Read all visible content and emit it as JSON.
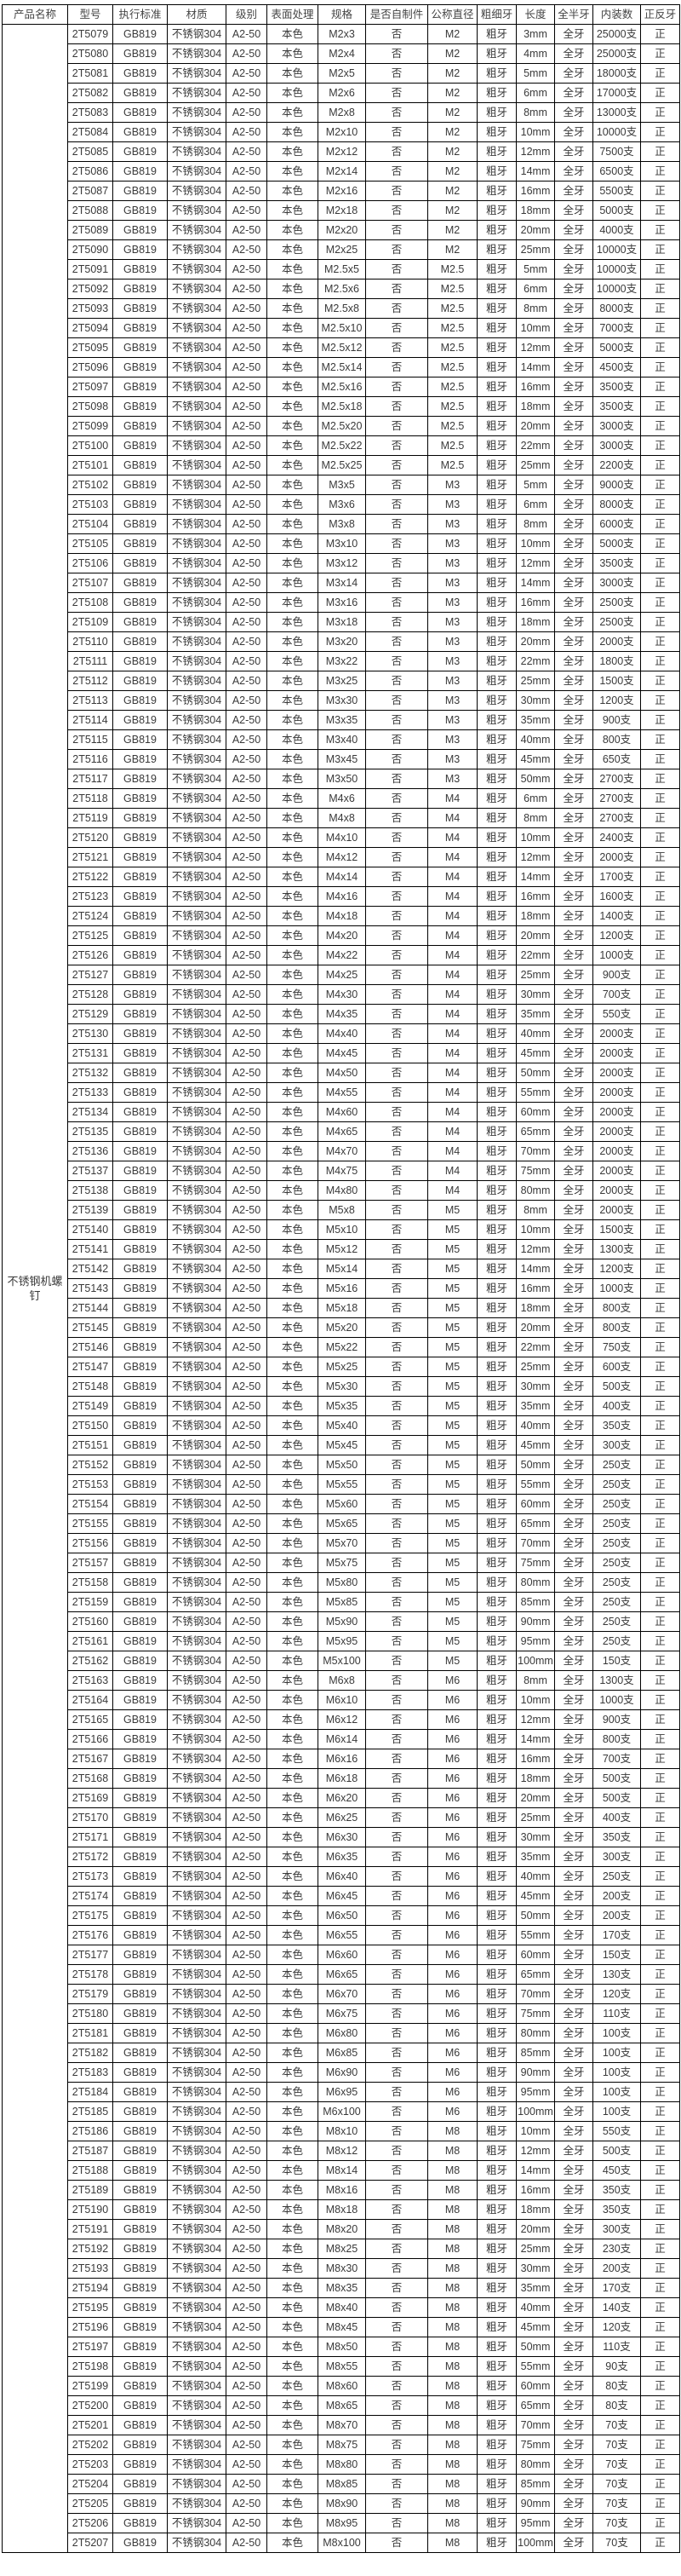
{
  "headers": [
    "产品名称",
    "型号",
    "执行标准",
    "材质",
    "级别",
    "表面处理",
    "规格",
    "是否自制件",
    "公称直径",
    "粗细牙",
    "长度",
    "全半牙",
    "内装数",
    "正反牙"
  ],
  "product_name": "不锈钢机螺钉",
  "common": {
    "standard": "GB819",
    "material": "不锈钢304",
    "grade": "A2-50",
    "surface": "本色",
    "self_made": "否",
    "thread": "粗牙",
    "full_half": "全牙",
    "direction": "正"
  },
  "rows": [
    [
      "2T5079",
      "M2x3",
      "M2",
      "3mm",
      "25000支"
    ],
    [
      "2T5080",
      "M2x4",
      "M2",
      "4mm",
      "25000支"
    ],
    [
      "2T5081",
      "M2x5",
      "M2",
      "5mm",
      "18000支"
    ],
    [
      "2T5082",
      "M2x6",
      "M2",
      "6mm",
      "17000支"
    ],
    [
      "2T5083",
      "M2x8",
      "M2",
      "8mm",
      "13000支"
    ],
    [
      "2T5084",
      "M2x10",
      "M2",
      "10mm",
      "10000支"
    ],
    [
      "2T5085",
      "M2x12",
      "M2",
      "12mm",
      "7500支"
    ],
    [
      "2T5086",
      "M2x14",
      "M2",
      "14mm",
      "6500支"
    ],
    [
      "2T5087",
      "M2x16",
      "M2",
      "16mm",
      "5500支"
    ],
    [
      "2T5088",
      "M2x18",
      "M2",
      "18mm",
      "5000支"
    ],
    [
      "2T5089",
      "M2x20",
      "M2",
      "20mm",
      "4000支"
    ],
    [
      "2T5090",
      "M2x25",
      "M2",
      "25mm",
      "10000支"
    ],
    [
      "2T5091",
      "M2.5x5",
      "M2.5",
      "5mm",
      "10000支"
    ],
    [
      "2T5092",
      "M2.5x6",
      "M2.5",
      "6mm",
      "10000支"
    ],
    [
      "2T5093",
      "M2.5x8",
      "M2.5",
      "8mm",
      "8000支"
    ],
    [
      "2T5094",
      "M2.5x10",
      "M2.5",
      "10mm",
      "7000支"
    ],
    [
      "2T5095",
      "M2.5x12",
      "M2.5",
      "12mm",
      "5000支"
    ],
    [
      "2T5096",
      "M2.5x14",
      "M2.5",
      "14mm",
      "4500支"
    ],
    [
      "2T5097",
      "M2.5x16",
      "M2.5",
      "16mm",
      "3500支"
    ],
    [
      "2T5098",
      "M2.5x18",
      "M2.5",
      "18mm",
      "3500支"
    ],
    [
      "2T5099",
      "M2.5x20",
      "M2.5",
      "20mm",
      "3000支"
    ],
    [
      "2T5100",
      "M2.5x22",
      "M2.5",
      "22mm",
      "3000支"
    ],
    [
      "2T5101",
      "M2.5x25",
      "M2.5",
      "25mm",
      "2200支"
    ],
    [
      "2T5102",
      "M3x5",
      "M3",
      "5mm",
      "9000支"
    ],
    [
      "2T5103",
      "M3x6",
      "M3",
      "6mm",
      "8000支"
    ],
    [
      "2T5104",
      "M3x8",
      "M3",
      "8mm",
      "6000支"
    ],
    [
      "2T5105",
      "M3x10",
      "M3",
      "10mm",
      "5000支"
    ],
    [
      "2T5106",
      "M3x12",
      "M3",
      "12mm",
      "3500支"
    ],
    [
      "2T5107",
      "M3x14",
      "M3",
      "14mm",
      "3000支"
    ],
    [
      "2T5108",
      "M3x16",
      "M3",
      "16mm",
      "2500支"
    ],
    [
      "2T5109",
      "M3x18",
      "M3",
      "18mm",
      "2500支"
    ],
    [
      "2T5110",
      "M3x20",
      "M3",
      "20mm",
      "2000支"
    ],
    [
      "2T5111",
      "M3x22",
      "M3",
      "22mm",
      "1800支"
    ],
    [
      "2T5112",
      "M3x25",
      "M3",
      "25mm",
      "1500支"
    ],
    [
      "2T5113",
      "M3x30",
      "M3",
      "30mm",
      "1200支"
    ],
    [
      "2T5114",
      "M3x35",
      "M3",
      "35mm",
      "900支"
    ],
    [
      "2T5115",
      "M3x40",
      "M3",
      "40mm",
      "800支"
    ],
    [
      "2T5116",
      "M3x45",
      "M3",
      "45mm",
      "650支"
    ],
    [
      "2T5117",
      "M3x50",
      "M3",
      "50mm",
      "2700支"
    ],
    [
      "2T5118",
      "M4x6",
      "M4",
      "6mm",
      "2700支"
    ],
    [
      "2T5119",
      "M4x8",
      "M4",
      "8mm",
      "2700支"
    ],
    [
      "2T5120",
      "M4x10",
      "M4",
      "10mm",
      "2400支"
    ],
    [
      "2T5121",
      "M4x12",
      "M4",
      "12mm",
      "2000支"
    ],
    [
      "2T5122",
      "M4x14",
      "M4",
      "14mm",
      "1700支"
    ],
    [
      "2T5123",
      "M4x16",
      "M4",
      "16mm",
      "1600支"
    ],
    [
      "2T5124",
      "M4x18",
      "M4",
      "18mm",
      "1400支"
    ],
    [
      "2T5125",
      "M4x20",
      "M4",
      "20mm",
      "1200支"
    ],
    [
      "2T5126",
      "M4x22",
      "M4",
      "22mm",
      "1000支"
    ],
    [
      "2T5127",
      "M4x25",
      "M4",
      "25mm",
      "900支"
    ],
    [
      "2T5128",
      "M4x30",
      "M4",
      "30mm",
      "700支"
    ],
    [
      "2T5129",
      "M4x35",
      "M4",
      "35mm",
      "550支"
    ],
    [
      "2T5130",
      "M4x40",
      "M4",
      "40mm",
      "2000支"
    ],
    [
      "2T5131",
      "M4x45",
      "M4",
      "45mm",
      "2000支"
    ],
    [
      "2T5132",
      "M4x50",
      "M4",
      "50mm",
      "2000支"
    ],
    [
      "2T5133",
      "M4x55",
      "M4",
      "55mm",
      "2000支"
    ],
    [
      "2T5134",
      "M4x60",
      "M4",
      "60mm",
      "2000支"
    ],
    [
      "2T5135",
      "M4x65",
      "M4",
      "65mm",
      "2000支"
    ],
    [
      "2T5136",
      "M4x70",
      "M4",
      "70mm",
      "2000支"
    ],
    [
      "2T5137",
      "M4x75",
      "M4",
      "75mm",
      "2000支"
    ],
    [
      "2T5138",
      "M4x80",
      "M4",
      "80mm",
      "2000支"
    ],
    [
      "2T5139",
      "M5x8",
      "M5",
      "8mm",
      "2000支"
    ],
    [
      "2T5140",
      "M5x10",
      "M5",
      "10mm",
      "1500支"
    ],
    [
      "2T5141",
      "M5x12",
      "M5",
      "12mm",
      "1300支"
    ],
    [
      "2T5142",
      "M5x14",
      "M5",
      "14mm",
      "1200支"
    ],
    [
      "2T5143",
      "M5x16",
      "M5",
      "16mm",
      "1000支"
    ],
    [
      "2T5144",
      "M5x18",
      "M5",
      "18mm",
      "800支"
    ],
    [
      "2T5145",
      "M5x20",
      "M5",
      "20mm",
      "800支"
    ],
    [
      "2T5146",
      "M5x22",
      "M5",
      "22mm",
      "750支"
    ],
    [
      "2T5147",
      "M5x25",
      "M5",
      "25mm",
      "600支"
    ],
    [
      "2T5148",
      "M5x30",
      "M5",
      "30mm",
      "500支"
    ],
    [
      "2T5149",
      "M5x35",
      "M5",
      "35mm",
      "400支"
    ],
    [
      "2T5150",
      "M5x40",
      "M5",
      "40mm",
      "350支"
    ],
    [
      "2T5151",
      "M5x45",
      "M5",
      "45mm",
      "300支"
    ],
    [
      "2T5152",
      "M5x50",
      "M5",
      "50mm",
      "250支"
    ],
    [
      "2T5153",
      "M5x55",
      "M5",
      "55mm",
      "250支"
    ],
    [
      "2T5154",
      "M5x60",
      "M5",
      "60mm",
      "250支"
    ],
    [
      "2T5155",
      "M5x65",
      "M5",
      "65mm",
      "250支"
    ],
    [
      "2T5156",
      "M5x70",
      "M5",
      "70mm",
      "250支"
    ],
    [
      "2T5157",
      "M5x75",
      "M5",
      "75mm",
      "250支"
    ],
    [
      "2T5158",
      "M5x80",
      "M5",
      "80mm",
      "250支"
    ],
    [
      "2T5159",
      "M5x85",
      "M5",
      "85mm",
      "250支"
    ],
    [
      "2T5160",
      "M5x90",
      "M5",
      "90mm",
      "250支"
    ],
    [
      "2T5161",
      "M5x95",
      "M5",
      "95mm",
      "250支"
    ],
    [
      "2T5162",
      "M5x100",
      "M5",
      "100mm",
      "150支"
    ],
    [
      "2T5163",
      "M6x8",
      "M6",
      "8mm",
      "1300支"
    ],
    [
      "2T5164",
      "M6x10",
      "M6",
      "10mm",
      "1000支"
    ],
    [
      "2T5165",
      "M6x12",
      "M6",
      "12mm",
      "900支"
    ],
    [
      "2T5166",
      "M6x14",
      "M6",
      "14mm",
      "800支"
    ],
    [
      "2T5167",
      "M6x16",
      "M6",
      "16mm",
      "700支"
    ],
    [
      "2T5168",
      "M6x18",
      "M6",
      "18mm",
      "500支"
    ],
    [
      "2T5169",
      "M6x20",
      "M6",
      "20mm",
      "500支"
    ],
    [
      "2T5170",
      "M6x25",
      "M6",
      "25mm",
      "400支"
    ],
    [
      "2T5171",
      "M6x30",
      "M6",
      "30mm",
      "350支"
    ],
    [
      "2T5172",
      "M6x35",
      "M6",
      "35mm",
      "300支"
    ],
    [
      "2T5173",
      "M6x40",
      "M6",
      "40mm",
      "250支"
    ],
    [
      "2T5174",
      "M6x45",
      "M6",
      "45mm",
      "200支"
    ],
    [
      "2T5175",
      "M6x50",
      "M6",
      "50mm",
      "200支"
    ],
    [
      "2T5176",
      "M6x55",
      "M6",
      "55mm",
      "170支"
    ],
    [
      "2T5177",
      "M6x60",
      "M6",
      "60mm",
      "150支"
    ],
    [
      "2T5178",
      "M6x65",
      "M6",
      "65mm",
      "130支"
    ],
    [
      "2T5179",
      "M6x70",
      "M6",
      "70mm",
      "120支"
    ],
    [
      "2T5180",
      "M6x75",
      "M6",
      "75mm",
      "110支"
    ],
    [
      "2T5181",
      "M6x80",
      "M6",
      "80mm",
      "100支"
    ],
    [
      "2T5182",
      "M6x85",
      "M6",
      "85mm",
      "100支"
    ],
    [
      "2T5183",
      "M6x90",
      "M6",
      "90mm",
      "100支"
    ],
    [
      "2T5184",
      "M6x95",
      "M6",
      "95mm",
      "100支"
    ],
    [
      "2T5185",
      "M6x100",
      "M6",
      "100mm",
      "100支"
    ],
    [
      "2T5186",
      "M8x10",
      "M8",
      "10mm",
      "550支"
    ],
    [
      "2T5187",
      "M8x12",
      "M8",
      "12mm",
      "500支"
    ],
    [
      "2T5188",
      "M8x14",
      "M8",
      "14mm",
      "450支"
    ],
    [
      "2T5189",
      "M8x16",
      "M8",
      "16mm",
      "350支"
    ],
    [
      "2T5190",
      "M8x18",
      "M8",
      "18mm",
      "350支"
    ],
    [
      "2T5191",
      "M8x20",
      "M8",
      "20mm",
      "300支"
    ],
    [
      "2T5192",
      "M8x25",
      "M8",
      "25mm",
      "230支"
    ],
    [
      "2T5193",
      "M8x30",
      "M8",
      "30mm",
      "200支"
    ],
    [
      "2T5194",
      "M8x35",
      "M8",
      "35mm",
      "170支"
    ],
    [
      "2T5195",
      "M8x40",
      "M8",
      "40mm",
      "140支"
    ],
    [
      "2T5196",
      "M8x45",
      "M8",
      "45mm",
      "120支"
    ],
    [
      "2T5197",
      "M8x50",
      "M8",
      "50mm",
      "110支"
    ],
    [
      "2T5198",
      "M8x55",
      "M8",
      "55mm",
      "90支"
    ],
    [
      "2T5199",
      "M8x60",
      "M8",
      "60mm",
      "80支"
    ],
    [
      "2T5200",
      "M8x65",
      "M8",
      "65mm",
      "80支"
    ],
    [
      "2T5201",
      "M8x70",
      "M8",
      "70mm",
      "70支"
    ],
    [
      "2T5202",
      "M8x75",
      "M8",
      "75mm",
      "70支"
    ],
    [
      "2T5203",
      "M8x80",
      "M8",
      "80mm",
      "70支"
    ],
    [
      "2T5204",
      "M8x85",
      "M8",
      "85mm",
      "70支"
    ],
    [
      "2T5205",
      "M8x90",
      "M8",
      "90mm",
      "70支"
    ],
    [
      "2T5206",
      "M8x95",
      "M8",
      "95mm",
      "70支"
    ],
    [
      "2T5207",
      "M8x100",
      "M8",
      "100mm",
      "70支"
    ]
  ]
}
